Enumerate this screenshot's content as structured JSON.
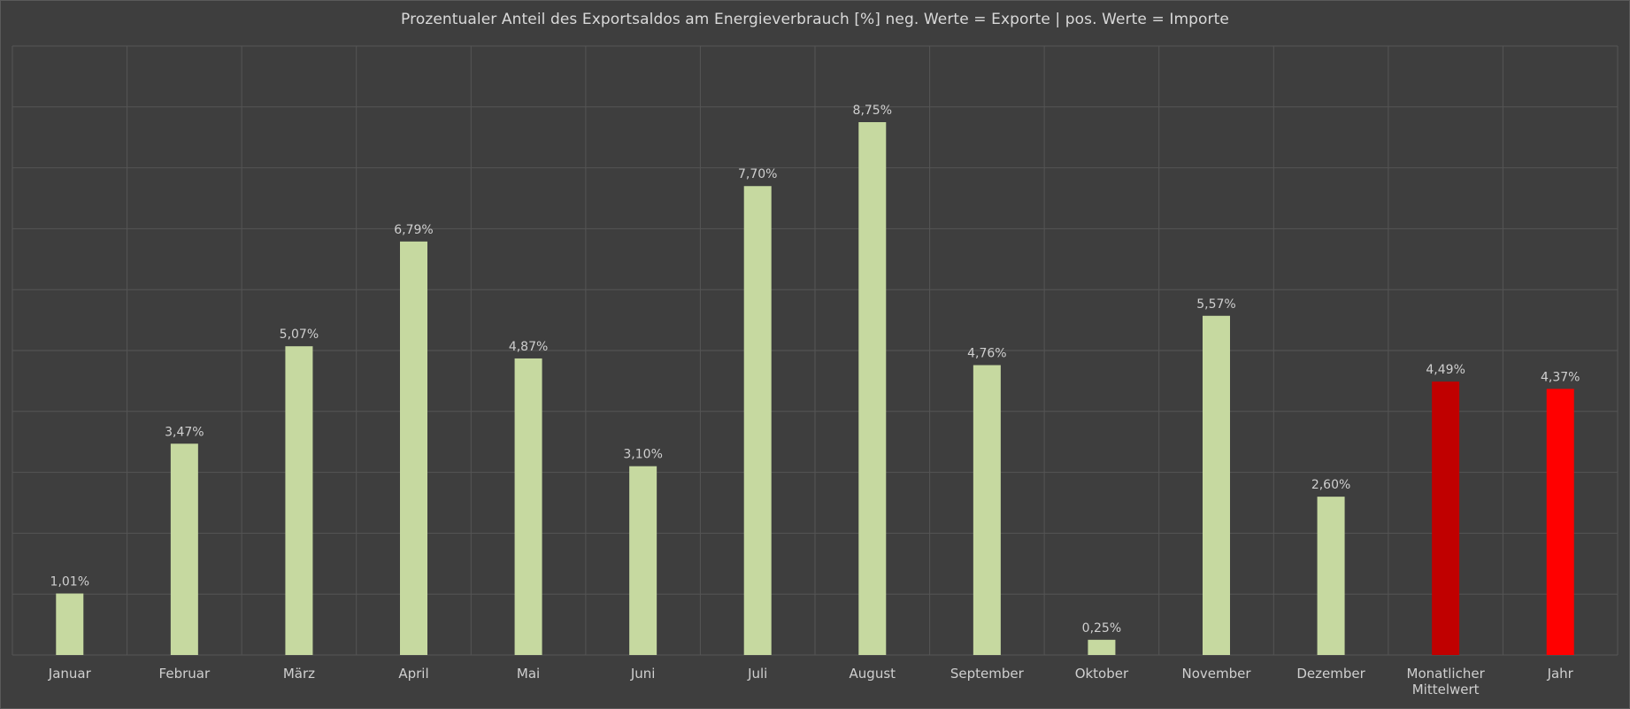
{
  "chart_data": {
    "type": "bar",
    "title": "Prozentualer Anteil des Exportsaldos am Energieverbrauch [%] neg. Werte = Exporte | pos. Werte = Importe",
    "categories": [
      "Januar",
      "Februar",
      "März",
      "April",
      "Mai",
      "Juni",
      "Juli",
      "August",
      "September",
      "Oktober",
      "November",
      "Dezember",
      "Monatlicher Mittelwert",
      "Jahr"
    ],
    "values": [
      1.01,
      3.47,
      5.07,
      6.79,
      4.87,
      3.1,
      7.7,
      8.75,
      4.76,
      0.25,
      5.57,
      2.6,
      4.49,
      4.37
    ],
    "value_labels": [
      "1,01%",
      "3,47%",
      "5,07%",
      "6,79%",
      "4,87%",
      "3,10%",
      "7,70%",
      "8,75%",
      "4,76%",
      "0,25%",
      "5,57%",
      "2,60%",
      "4,49%",
      "4,37%"
    ],
    "bar_colors": [
      "#c6d9a0",
      "#c6d9a0",
      "#c6d9a0",
      "#c6d9a0",
      "#c6d9a0",
      "#c6d9a0",
      "#c6d9a0",
      "#c6d9a0",
      "#c6d9a0",
      "#c6d9a0",
      "#c6d9a0",
      "#c6d9a0",
      "#c00000",
      "#ff0000"
    ],
    "ylim": [
      0,
      10
    ],
    "grid": true,
    "background_color": "#3e3e3e",
    "grid_color": "#555555",
    "text_color": "#cfcfcf"
  }
}
